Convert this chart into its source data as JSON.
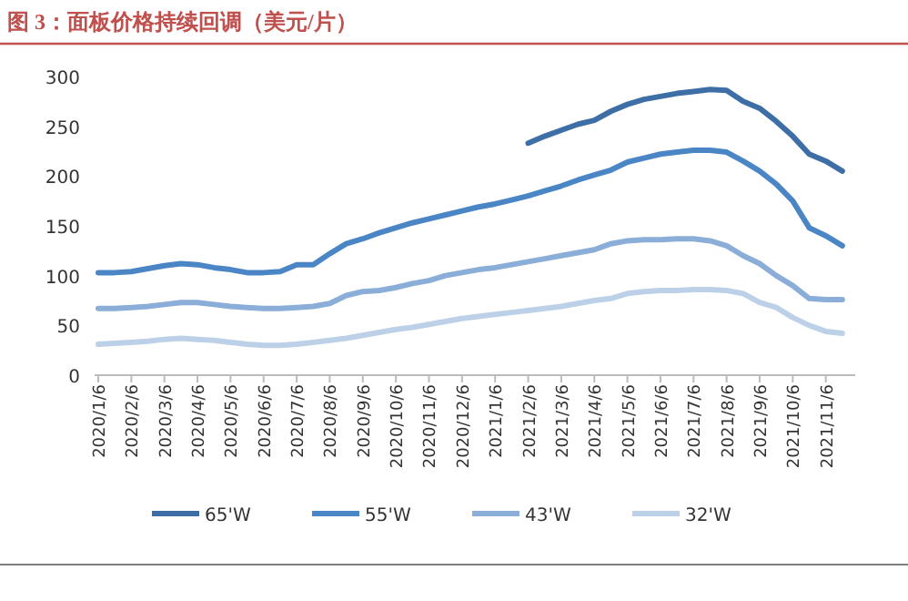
{
  "chart_data": {
    "type": "line",
    "title": "图 3：面板价格持续回调（美元/片）",
    "categories": [
      "2020/1/6",
      null,
      "2020/2/6",
      null,
      "2020/3/6",
      null,
      "2020/4/6",
      null,
      "2020/5/6",
      null,
      "2020/6/6",
      null,
      "2020/7/6",
      null,
      "2020/8/6",
      null,
      "2020/9/6",
      null,
      "2020/10/6",
      null,
      "2020/11/6",
      null,
      "2020/12/6",
      null,
      "2021/1/6",
      null,
      "2021/2/6",
      null,
      "2021/3/6",
      null,
      "2021/4/6",
      null,
      "2021/5/6",
      null,
      "2021/6/6",
      null,
      "2021/7/6",
      null,
      "2021/8/6",
      null,
      "2021/9/6",
      null,
      "2021/10/6",
      null,
      "2021/11/6",
      null
    ],
    "series": [
      {
        "name": "65'W",
        "color": "#3d6fa6",
        "values": [
          null,
          null,
          null,
          null,
          null,
          null,
          null,
          null,
          null,
          null,
          null,
          null,
          null,
          null,
          null,
          null,
          null,
          null,
          null,
          null,
          null,
          null,
          null,
          null,
          null,
          null,
          233,
          240,
          246,
          252,
          256,
          265,
          272,
          277,
          280,
          283,
          285,
          287,
          286,
          275,
          268,
          255,
          240,
          222,
          215,
          205
        ]
      },
      {
        "name": "55'W",
        "color": "#4a86c5",
        "values": [
          103,
          103,
          104,
          107,
          110,
          112,
          111,
          108,
          106,
          103,
          103,
          104,
          111,
          111,
          122,
          132,
          137,
          143,
          148,
          153,
          157,
          161,
          165,
          169,
          172,
          176,
          180,
          185,
          190,
          196,
          201,
          206,
          214,
          218,
          222,
          224,
          226,
          226,
          224,
          215,
          205,
          192,
          175,
          148,
          140,
          130
        ]
      },
      {
        "name": "43'W",
        "color": "#8aaed8",
        "values": [
          67,
          67,
          68,
          69,
          71,
          73,
          73,
          71,
          69,
          68,
          67,
          67,
          68,
          69,
          72,
          80,
          84,
          85,
          88,
          92,
          95,
          100,
          103,
          106,
          108,
          111,
          114,
          117,
          120,
          123,
          126,
          132,
          135,
          136,
          136,
          137,
          137,
          135,
          130,
          120,
          112,
          100,
          90,
          77,
          76,
          76
        ]
      },
      {
        "name": "32'W",
        "color": "#bcd0e8",
        "values": [
          31,
          32,
          33,
          34,
          36,
          37,
          36,
          35,
          33,
          31,
          30,
          30,
          31,
          33,
          35,
          37,
          40,
          43,
          46,
          48,
          51,
          54,
          57,
          59,
          61,
          63,
          65,
          67,
          69,
          72,
          75,
          77,
          82,
          84,
          85,
          85,
          86,
          86,
          85,
          82,
          73,
          68,
          58,
          50,
          44,
          42
        ]
      }
    ],
    "ylim": [
      0,
      300
    ],
    "yticks": [
      0,
      50,
      100,
      150,
      200,
      250,
      300
    ],
    "grid": false,
    "legend": "bottom",
    "marker": "none",
    "line_style": "solid"
  }
}
